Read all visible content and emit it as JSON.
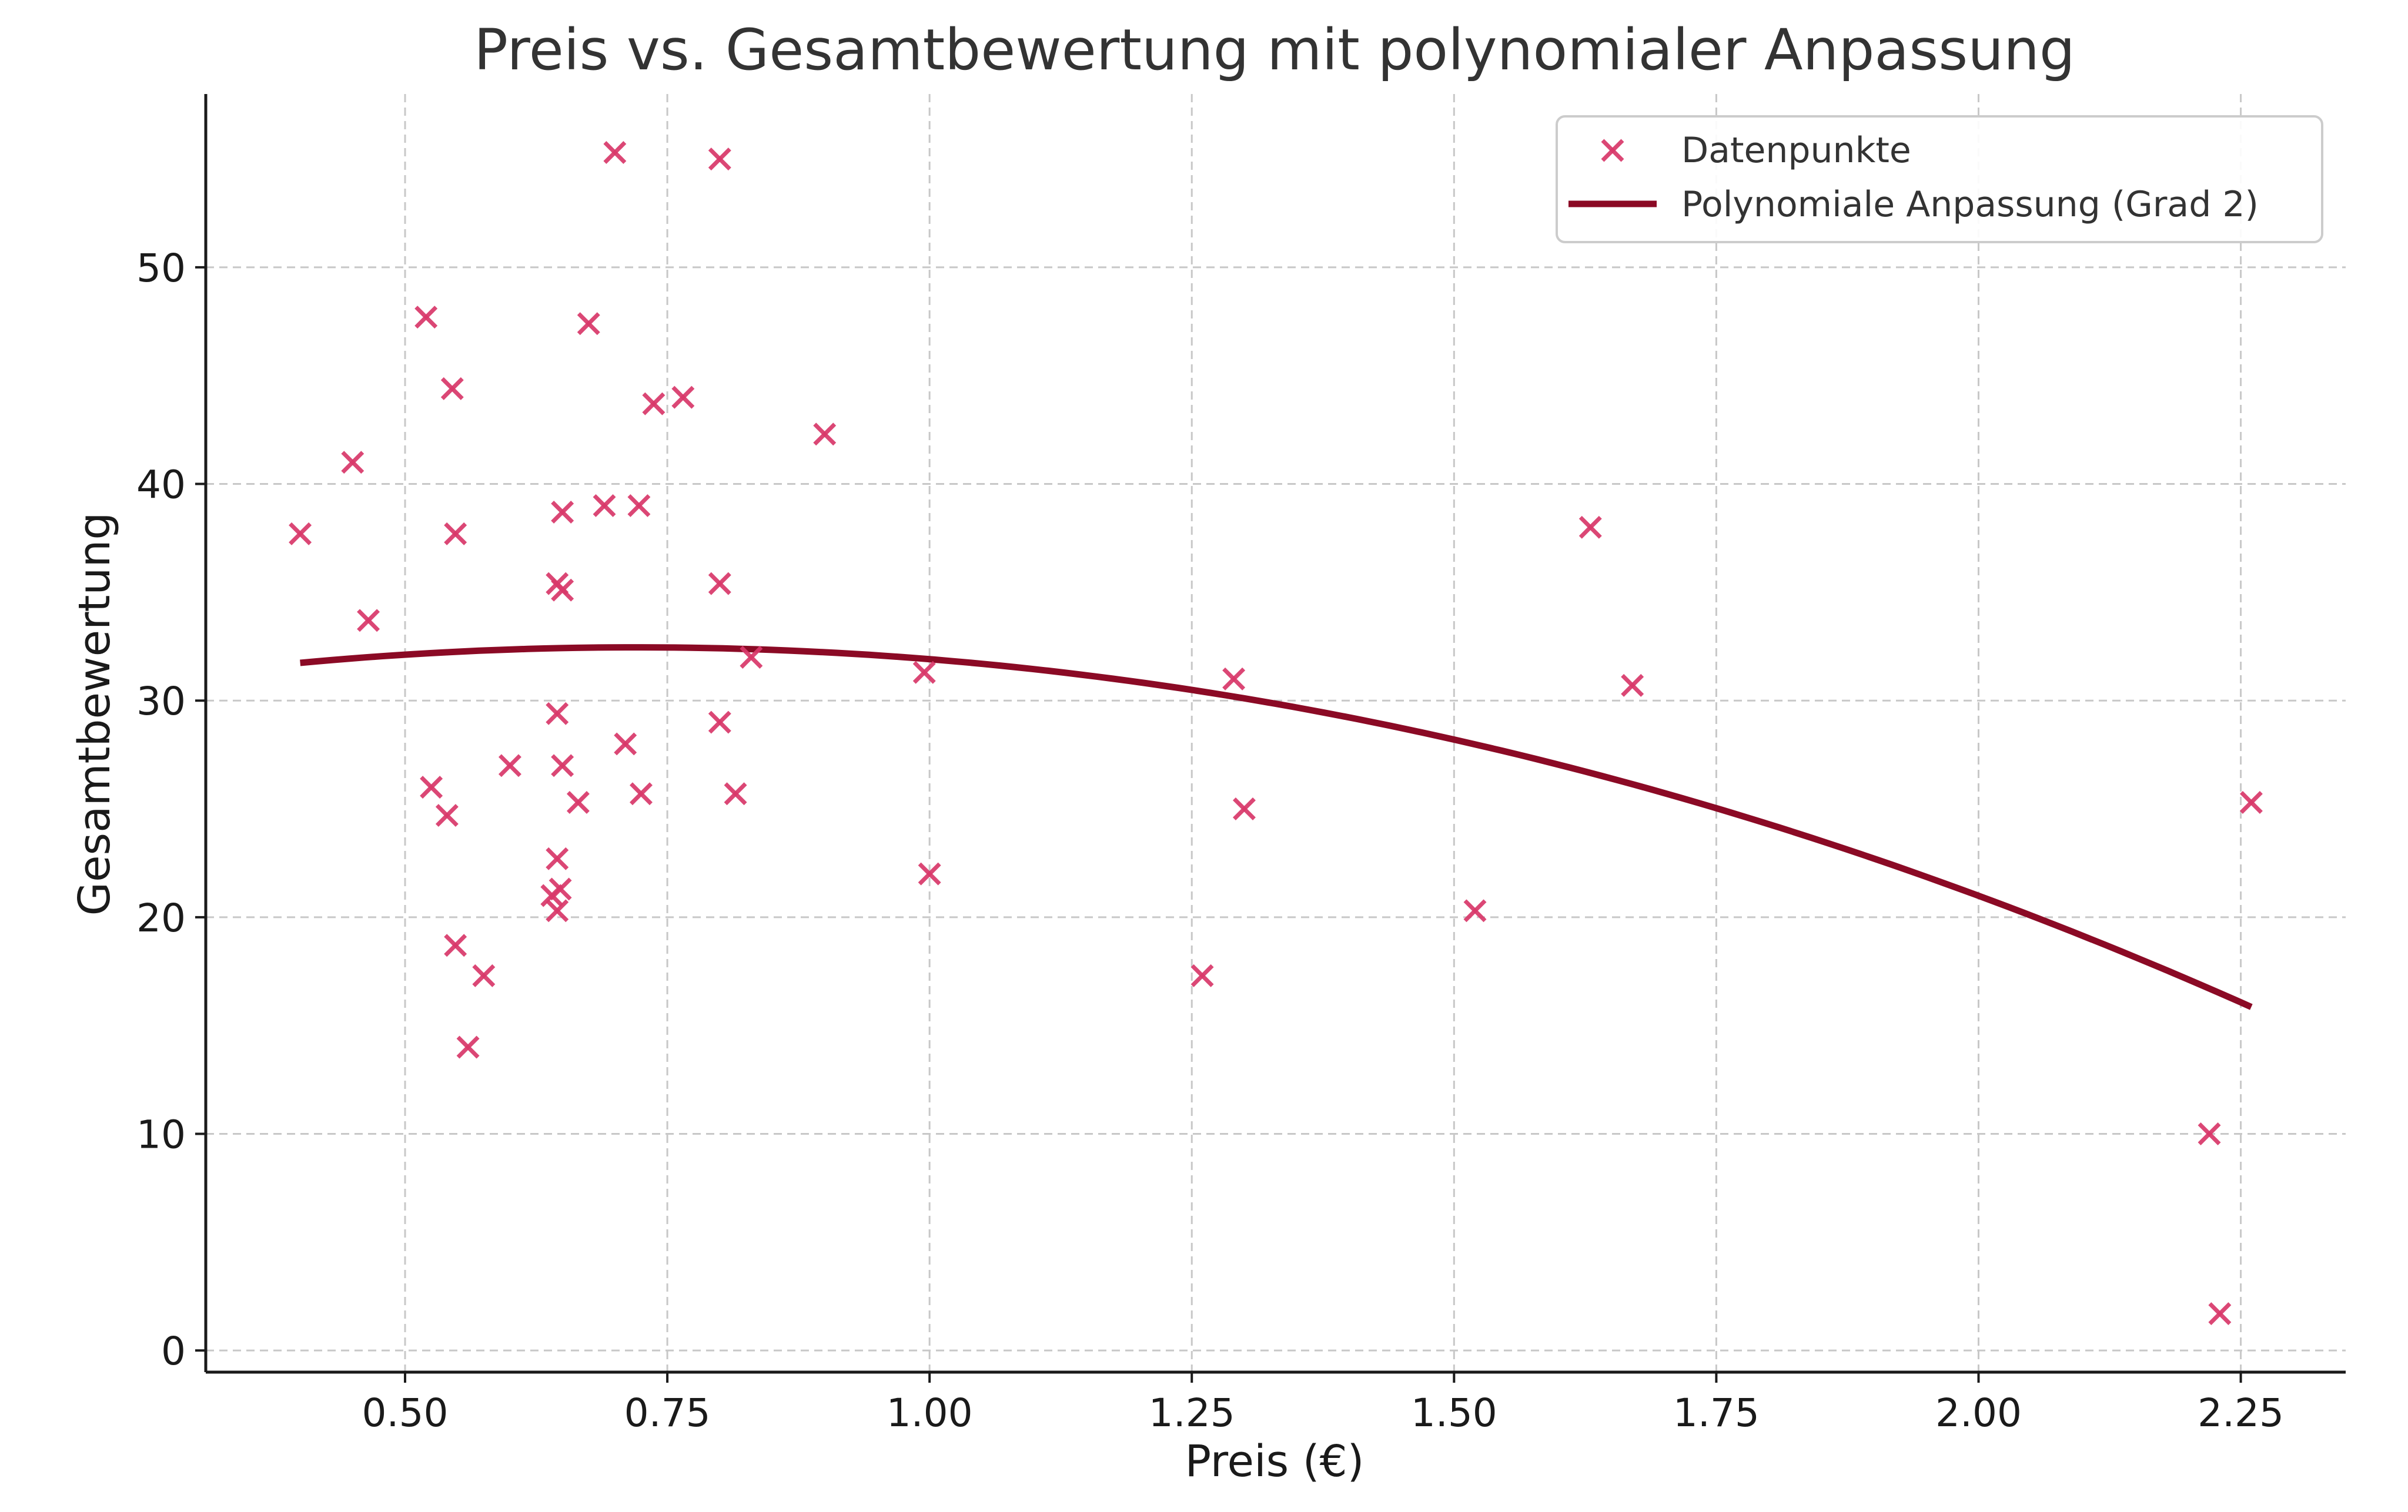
{
  "chart_data": {
    "type": "scatter",
    "title": "Preis vs. Gesamtbewertung mit polynomialer Anpassung",
    "xlabel": "Preis (€)",
    "ylabel": "Gesamtbewertung",
    "xlim": [
      0.31,
      2.35
    ],
    "ylim": [
      -1,
      58
    ],
    "x_ticks": [
      0.5,
      0.75,
      1.0,
      1.25,
      1.5,
      1.75,
      2.0,
      2.25
    ],
    "x_tick_labels": [
      "0.50",
      "0.75",
      "1.00",
      "1.25",
      "1.50",
      "1.75",
      "2.00",
      "2.25"
    ],
    "y_ticks": [
      0,
      10,
      20,
      30,
      40,
      50
    ],
    "y_tick_labels": [
      "0",
      "10",
      "20",
      "30",
      "40",
      "50"
    ],
    "grid": true,
    "legend_position": "top-right",
    "colors": {
      "points": "#d9386a",
      "fit": "#8b0a25"
    },
    "series": [
      {
        "name": "Datenpunkte",
        "type": "scatter",
        "marker": "x",
        "points": [
          [
            0.4,
            37.7
          ],
          [
            0.45,
            41.0
          ],
          [
            0.465,
            33.7
          ],
          [
            0.52,
            47.7
          ],
          [
            0.525,
            26.0
          ],
          [
            0.54,
            24.7
          ],
          [
            0.545,
            44.4
          ],
          [
            0.548,
            37.7
          ],
          [
            0.548,
            18.7
          ],
          [
            0.56,
            14.0
          ],
          [
            0.575,
            17.3
          ],
          [
            0.6,
            27.0
          ],
          [
            0.64,
            21.0
          ],
          [
            0.645,
            35.4
          ],
          [
            0.645,
            29.4
          ],
          [
            0.645,
            22.7
          ],
          [
            0.645,
            20.3
          ],
          [
            0.648,
            21.3
          ],
          [
            0.65,
            38.7
          ],
          [
            0.65,
            35.1
          ],
          [
            0.65,
            27.0
          ],
          [
            0.665,
            25.3
          ],
          [
            0.675,
            47.4
          ],
          [
            0.69,
            39.0
          ],
          [
            0.7,
            55.3
          ],
          [
            0.71,
            28.0
          ],
          [
            0.723,
            39.0
          ],
          [
            0.725,
            25.7
          ],
          [
            0.737,
            43.7
          ],
          [
            0.765,
            44.0
          ],
          [
            0.8,
            55.0
          ],
          [
            0.8,
            35.4
          ],
          [
            0.8,
            29.0
          ],
          [
            0.815,
            25.7
          ],
          [
            0.83,
            32.0
          ],
          [
            0.9,
            42.3
          ],
          [
            0.995,
            31.3
          ],
          [
            1.0,
            22.0
          ],
          [
            1.26,
            17.3
          ],
          [
            1.29,
            31.0
          ],
          [
            1.3,
            25.0
          ],
          [
            1.52,
            20.3
          ],
          [
            1.63,
            38.0
          ],
          [
            1.67,
            30.7
          ],
          [
            2.22,
            10.0
          ],
          [
            2.23,
            1.7
          ],
          [
            2.26,
            25.3
          ]
        ]
      },
      {
        "name": "Polynomiale Anpassung (Grad 2)",
        "type": "line",
        "coefficients": [
          28.83,
          10.08,
          -7.0
        ],
        "x_range": [
          0.4,
          2.26
        ]
      }
    ]
  }
}
